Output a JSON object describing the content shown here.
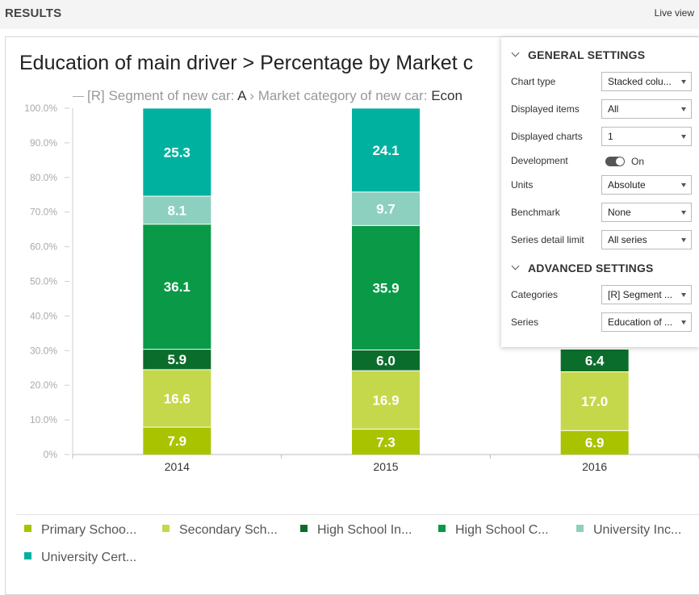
{
  "header": {
    "title": "RESULTS",
    "live_view": "Live view"
  },
  "chart_title": "Education of main driver > Percentage by Market c",
  "subtitle": {
    "cat_label": "[R] Segment of new car:",
    "cat_value": "A",
    "series_label": "Market category of new car:",
    "series_value": "Econ"
  },
  "chart_data": {
    "type": "bar",
    "stacked": true,
    "ylim": [
      0,
      100
    ],
    "yticks": [
      "0%",
      "10.0%",
      "20.0%",
      "30.0%",
      "40.0%",
      "50.0%",
      "60.0%",
      "70.0%",
      "80.0%",
      "90.0%",
      "100.0%"
    ],
    "categories": [
      "2014",
      "2015",
      "2016"
    ],
    "series": [
      {
        "name": "Primary Schoo...",
        "color": "#a9c300",
        "values": [
          7.9,
          7.3,
          6.9
        ]
      },
      {
        "name": "Secondary Sch...",
        "color": "#c5d84b",
        "values": [
          16.6,
          16.9,
          17.0
        ]
      },
      {
        "name": "High School In...",
        "color": "#0b6d2c",
        "values": [
          5.9,
          6.0,
          6.4
        ]
      },
      {
        "name": "High School C...",
        "color": "#0a9a47",
        "values": [
          36.1,
          35.9,
          null
        ]
      },
      {
        "name": "University Inc...",
        "color": "#8dd0bf",
        "values": [
          8.1,
          9.7,
          null
        ]
      },
      {
        "name": "University Cert...",
        "color": "#00b1a0",
        "values": [
          25.3,
          24.1,
          null
        ]
      }
    ]
  },
  "settings": {
    "general_heading": "GENERAL SETTINGS",
    "advanced_heading": "ADVANCED SETTINGS",
    "rows": [
      {
        "label": "Chart type",
        "value": "Stacked colu..."
      },
      {
        "label": "Displayed items",
        "value": "All"
      },
      {
        "label": "Displayed charts",
        "value": "1"
      },
      {
        "label": "Development",
        "value": "On"
      },
      {
        "label": "Units",
        "value": "Absolute"
      },
      {
        "label": "Benchmark",
        "value": "None"
      },
      {
        "label": "Series detail limit",
        "value": "All series"
      }
    ],
    "advanced_rows": [
      {
        "label": "Categories",
        "value": "[R] Segment ..."
      },
      {
        "label": "Series",
        "value": "Education of ..."
      }
    ]
  }
}
